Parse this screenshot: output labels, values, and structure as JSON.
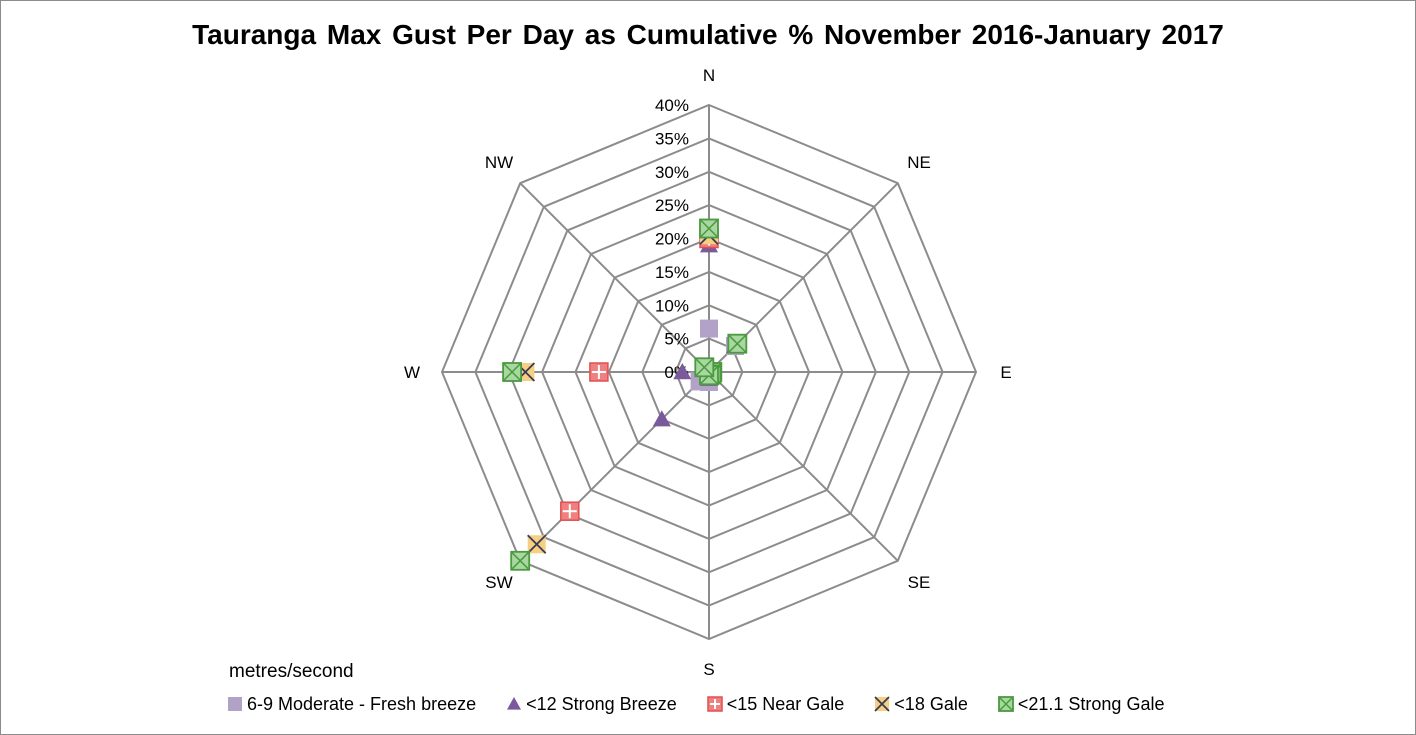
{
  "chart_data": {
    "type": "radar",
    "title": "Tauranga Max Gust Per Day as Cumulative %  November 2016-January 2017",
    "categories": [
      "N",
      "NE",
      "E",
      "SE",
      "S",
      "SW",
      "W",
      "NW"
    ],
    "axis_tick_labels": [
      "0%",
      "5%",
      "10%",
      "15%",
      "20%",
      "25%",
      "30%",
      "35%",
      "40%"
    ],
    "range": [
      0,
      40
    ],
    "legend_title": "metres/second",
    "legend_position": "bottom",
    "series": [
      {
        "name": "6-9 Moderate - Fresh breeze",
        "marker": "square",
        "color": "#b3a2c7",
        "values": [
          6.5,
          5.5,
          0.5,
          0.5,
          1.5,
          2.0,
          0.8,
          0.8
        ]
      },
      {
        "name": "<12 Strong Breeze",
        "marker": "triangle",
        "color": "#7a5a9a",
        "values": [
          19,
          5.5,
          0.5,
          0.5,
          1.0,
          10.0,
          4.0,
          1.0
        ]
      },
      {
        "name": "<15 Near Gale",
        "marker": "square-plus",
        "color": "#f08080",
        "values": [
          20,
          6.0,
          0.5,
          0.5,
          0.5,
          29.5,
          16.5,
          1.0
        ]
      },
      {
        "name": "<18 Gale",
        "marker": "square-x",
        "color": "#f5d080",
        "values": [
          20.5,
          6.0,
          0.5,
          0.5,
          0.5,
          36.5,
          27.5,
          1.0
        ]
      },
      {
        "name": "<21.1 Strong Gale",
        "marker": "square-x-green",
        "color": "#a8d8a0",
        "values": [
          21.5,
          6.0,
          0.5,
          0.5,
          0.5,
          40.0,
          29.5,
          1.0
        ]
      }
    ]
  }
}
